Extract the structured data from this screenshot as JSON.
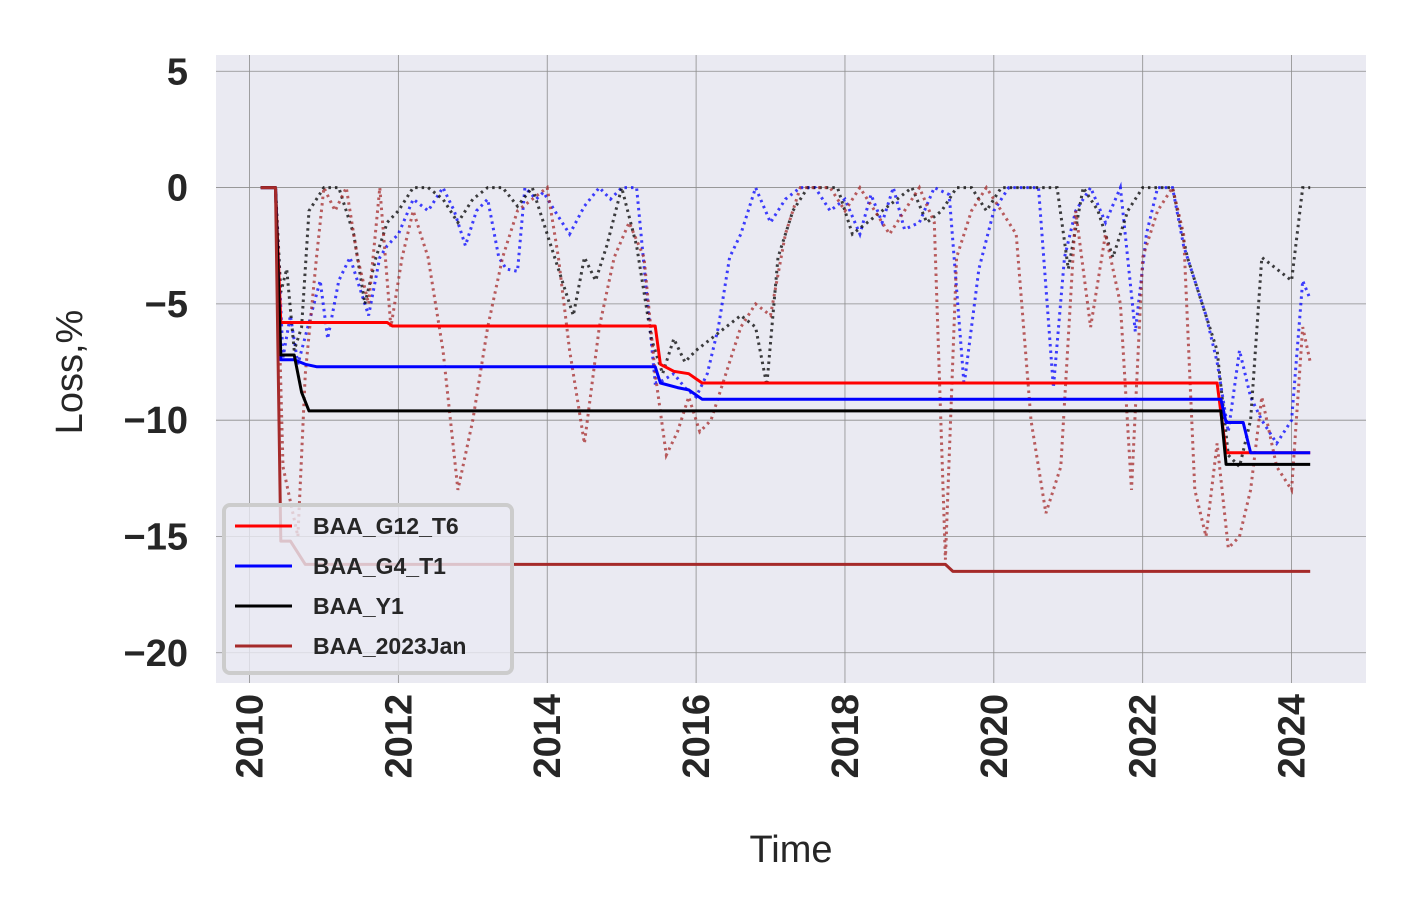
{
  "chart_data": {
    "type": "line",
    "xlabel": "Time",
    "ylabel": "Loss,%",
    "xlim": [
      2009.55,
      2025.0
    ],
    "ylim": [
      -21.3,
      5.7
    ],
    "x_ticks": [
      2010,
      2012,
      2014,
      2016,
      2018,
      2020,
      2022,
      2024
    ],
    "x_tick_labels": [
      "2010",
      "2012",
      "2014",
      "2016",
      "2018",
      "2020",
      "2022",
      "2024"
    ],
    "y_ticks": [
      5,
      0,
      -5,
      -10,
      -15,
      -20
    ],
    "y_tick_labels": [
      "5",
      "0",
      "−5",
      "−10",
      "−15",
      "−20"
    ],
    "grid": true,
    "background": "#eaeaf2",
    "legend_position": "lower-left",
    "series": [
      {
        "name": "BAA_G12_T6",
        "color": "#ff0000",
        "style": "solid",
        "x": [
          2010.15,
          2010.35,
          2010.42,
          2011.85,
          2011.92,
          2015.45,
          2015.52,
          2015.7,
          2015.9,
          2016.08,
          2023.0,
          2023.12,
          2024.25
        ],
        "y": [
          0,
          0,
          -5.8,
          -5.8,
          -5.95,
          -5.95,
          -7.6,
          -7.9,
          -8.0,
          -8.4,
          -8.4,
          -11.4,
          -11.4
        ]
      },
      {
        "name": "BAA_G4_T1",
        "color": "#0000ff",
        "style": "solid",
        "x": [
          2010.15,
          2010.35,
          2010.42,
          2010.6,
          2010.75,
          2010.9,
          2015.45,
          2015.52,
          2015.75,
          2015.9,
          2016.08,
          2023.05,
          2023.12,
          2023.35,
          2023.45,
          2024.25
        ],
        "y": [
          0,
          0,
          -7.4,
          -7.4,
          -7.6,
          -7.7,
          -7.7,
          -8.4,
          -8.6,
          -8.7,
          -9.1,
          -9.1,
          -10.1,
          -10.1,
          -11.4,
          -11.4
        ],
        "trace": {
          "x": [
            2010.35,
            2010.45,
            2010.55,
            2010.65,
            2010.8,
            2010.95,
            2011.05,
            2011.2,
            2011.35,
            2011.5,
            2011.6,
            2011.75,
            2011.85,
            2012.0,
            2012.2,
            2012.4,
            2012.6,
            2012.75,
            2012.9,
            2013.05,
            2013.2,
            2013.35,
            2013.45,
            2013.6,
            2013.7,
            2013.85,
            2013.95,
            2014.1,
            2014.3,
            2014.5,
            2014.7,
            2014.85,
            2015.0,
            2015.2,
            2015.45,
            2015.55,
            2015.7,
            2015.85,
            2016.0,
            2016.15,
            2016.3,
            2016.45,
            2016.6,
            2016.8,
            2017.0,
            2017.2,
            2017.4,
            2017.6,
            2017.8,
            2018.0,
            2018.2,
            2018.35,
            2018.5,
            2018.65,
            2018.8,
            2019.0,
            2019.2,
            2019.4,
            2019.6,
            2019.8,
            2020.0,
            2020.2,
            2020.4,
            2020.6,
            2020.8,
            2020.95,
            2021.1,
            2021.3,
            2021.5,
            2021.7,
            2021.9,
            2022.05,
            2022.2,
            2022.4,
            2022.55,
            2022.7,
            2022.85,
            2023.0,
            2023.15,
            2023.3,
            2023.45,
            2023.6,
            2023.8,
            2024.0,
            2024.15,
            2024.25
          ],
          "y": [
            0,
            -7.3,
            -5.5,
            -7.6,
            -5.8,
            -4.0,
            -6.5,
            -4.0,
            -3.0,
            -4.5,
            -5.5,
            -3.0,
            -2.5,
            -2.0,
            -0.5,
            -1.0,
            0,
            -1.0,
            -2.5,
            -1.0,
            -0.5,
            -3.0,
            -3.5,
            -3.6,
            0,
            -0.5,
            -0.2,
            -1.0,
            -2.0,
            -0.8,
            0,
            -0.5,
            0,
            0,
            -8.4,
            -8.3,
            -8.0,
            -8.6,
            -9.0,
            -8.0,
            -6.0,
            -3.0,
            -2.0,
            0,
            -1.5,
            -0.5,
            0,
            0,
            -1.0,
            -0.5,
            -2.0,
            -0.3,
            -1.5,
            0,
            -1.8,
            -1.5,
            0,
            -0.3,
            -8.5,
            -3.5,
            -1.0,
            0,
            0,
            0,
            -8.6,
            -3.0,
            -1.0,
            0,
            -1.5,
            0,
            -6.2,
            -2.0,
            0,
            0,
            -2.5,
            -4.0,
            -5.5,
            -7.5,
            -10.5,
            -7.0,
            -9.0,
            -10.0,
            -11.0,
            -10.0,
            -4.0,
            -4.8
          ]
        }
      },
      {
        "name": "BAA_Y1",
        "color": "#000000",
        "style": "solid",
        "x": [
          2010.15,
          2010.35,
          2010.42,
          2010.6,
          2010.7,
          2010.8,
          2023.05,
          2023.12,
          2024.25
        ],
        "y": [
          0,
          0,
          -7.2,
          -7.2,
          -8.8,
          -9.6,
          -9.6,
          -11.9,
          -11.9
        ],
        "trace": {
          "x": [
            2010.35,
            2010.42,
            2010.5,
            2010.6,
            2010.7,
            2010.8,
            2010.9,
            2011.0,
            2011.2,
            2011.4,
            2011.55,
            2011.7,
            2011.85,
            2012.0,
            2012.2,
            2012.4,
            2012.6,
            2012.8,
            2013.0,
            2013.2,
            2013.4,
            2013.6,
            2013.8,
            2014.0,
            2014.2,
            2014.35,
            2014.5,
            2014.65,
            2014.8,
            2015.0,
            2015.2,
            2015.4,
            2015.55,
            2015.7,
            2015.85,
            2016.0,
            2016.2,
            2016.4,
            2016.6,
            2016.8,
            2016.95,
            2017.1,
            2017.3,
            2017.5,
            2017.7,
            2017.9,
            2018.1,
            2018.3,
            2018.5,
            2018.7,
            2018.9,
            2019.1,
            2019.3,
            2019.5,
            2019.7,
            2019.9,
            2020.1,
            2020.3,
            2020.5,
            2020.7,
            2020.85,
            2021.0,
            2021.2,
            2021.4,
            2021.6,
            2021.8,
            2022.0,
            2022.2,
            2022.4,
            2022.6,
            2022.8,
            2023.0,
            2023.15,
            2023.3,
            2023.45,
            2023.6,
            2023.8,
            2024.0,
            2024.15,
            2024.25
          ],
          "y": [
            0,
            -4.5,
            -3.5,
            -7.0,
            -6.0,
            -1.0,
            -0.5,
            0,
            0,
            -2.0,
            -5.0,
            -3.0,
            -1.5,
            -1.0,
            0,
            0,
            -0.5,
            -1.5,
            -0.5,
            0,
            0,
            -0.8,
            0,
            -2.0,
            -4.0,
            -5.5,
            -3.0,
            -4.0,
            -2.5,
            0,
            -2.5,
            -6.5,
            -8.0,
            -6.5,
            -7.5,
            -7.0,
            -6.5,
            -6.0,
            -5.5,
            -6.0,
            -8.5,
            -3.0,
            -1.0,
            0,
            0,
            0,
            -2.0,
            -1.5,
            -1.0,
            -0.5,
            0,
            -1.5,
            -1.0,
            0,
            0,
            -1.0,
            0,
            0,
            0,
            0,
            0,
            -3.5,
            0,
            -1.0,
            -3.0,
            -1.0,
            0,
            0,
            0,
            -3.0,
            -5.0,
            -7.0,
            -11.5,
            -12.0,
            -10.0,
            -3.0,
            -3.5,
            -4.0,
            0,
            0
          ]
        }
      },
      {
        "name": "BAA_2023Jan",
        "color": "#a52a2a",
        "style": "solid",
        "x": [
          2010.15,
          2010.35,
          2010.42,
          2010.55,
          2010.75,
          2019.35,
          2019.45,
          2024.25
        ],
        "y": [
          0,
          0,
          -15.2,
          -15.2,
          -16.2,
          -16.2,
          -16.5,
          -16.5
        ],
        "trace": {
          "x": [
            2010.35,
            2010.45,
            2010.55,
            2010.65,
            2010.75,
            2010.9,
            2011.0,
            2011.15,
            2011.3,
            2011.45,
            2011.6,
            2011.75,
            2011.9,
            2012.05,
            2012.2,
            2012.4,
            2012.6,
            2012.8,
            2013.0,
            2013.2,
            2013.4,
            2013.6,
            2013.8,
            2014.0,
            2014.15,
            2014.3,
            2014.5,
            2014.7,
            2014.9,
            2015.1,
            2015.3,
            2015.45,
            2015.6,
            2015.75,
            2015.9,
            2016.05,
            2016.2,
            2016.4,
            2016.6,
            2016.8,
            2017.0,
            2017.2,
            2017.4,
            2017.6,
            2017.8,
            2018.0,
            2018.2,
            2018.4,
            2018.6,
            2018.8,
            2019.0,
            2019.2,
            2019.35,
            2019.5,
            2019.7,
            2019.9,
            2020.1,
            2020.3,
            2020.5,
            2020.7,
            2020.9,
            2021.1,
            2021.3,
            2021.5,
            2021.7,
            2021.85,
            2022.0,
            2022.2,
            2022.4,
            2022.55,
            2022.7,
            2022.85,
            2023.0,
            2023.15,
            2023.3,
            2023.45,
            2023.6,
            2023.8,
            2024.0,
            2024.15,
            2024.25
          ],
          "y": [
            0,
            -12.0,
            -13.5,
            -15.0,
            -8.0,
            -3.0,
            0,
            -1.0,
            0,
            -3.0,
            -5.0,
            0,
            -6.0,
            -3.0,
            -1.0,
            -3.0,
            -7.0,
            -13.0,
            -10.0,
            -6.0,
            -3.0,
            -1.0,
            -0.5,
            0,
            -3.0,
            -7.0,
            -11.0,
            -6.0,
            -3.0,
            -1.5,
            -3.0,
            -8.0,
            -11.5,
            -10.5,
            -9.0,
            -10.5,
            -10.0,
            -8.0,
            -6.0,
            -5.0,
            -5.5,
            -2.0,
            0,
            0,
            0,
            -1.0,
            0,
            -1.0,
            -2.0,
            -1.0,
            0,
            -1.5,
            -16.0,
            -3.0,
            -1.0,
            0,
            -1.0,
            -2.0,
            -10.0,
            -14.0,
            -12.0,
            -1.0,
            -6.0,
            -2.0,
            -5.0,
            -13.0,
            -3.0,
            -1.0,
            0,
            -2.0,
            -13.0,
            -15.0,
            -11.0,
            -15.5,
            -15.0,
            -13.0,
            -9.0,
            -12.0,
            -13.0,
            -6.0,
            -7.5
          ]
        }
      }
    ]
  }
}
